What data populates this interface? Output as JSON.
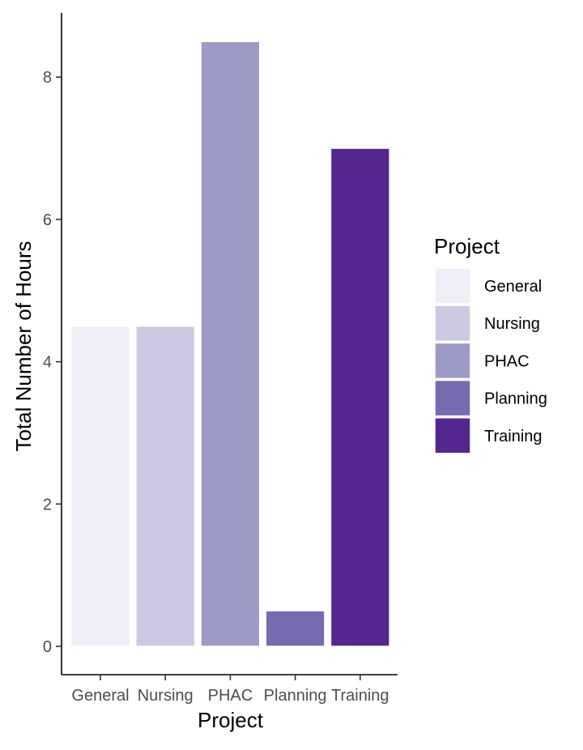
{
  "chart_data": {
    "type": "bar",
    "title": "",
    "xlabel": "Project",
    "ylabel": "Total Number of Hours",
    "categories": [
      "General",
      "Nursing",
      "PHAC",
      "Planning",
      "Training"
    ],
    "values": [
      4.5,
      4.5,
      8.5,
      0.5,
      7.0
    ],
    "colors": [
      "#efedf5",
      "#cbc9e2",
      "#9e9ac8",
      "#756bb1",
      "#54278f"
    ],
    "ylim": [
      0,
      8.5
    ],
    "y_ticks": [
      0,
      2,
      4,
      6,
      8
    ],
    "grid": false,
    "legend": {
      "title": "Project",
      "position": "right",
      "entries": [
        "General",
        "Nursing",
        "PHAC",
        "Planning",
        "Training"
      ]
    }
  }
}
